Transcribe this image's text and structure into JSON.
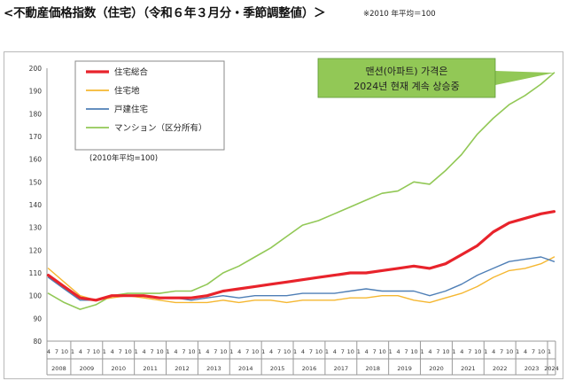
{
  "heading": "<不動産価格指数（住宅）（令和６年３月分・季節調整値）＞",
  "heading_note": "※2010 年平均＝100",
  "colors": {
    "total": "#e8232b",
    "land": "#f5b731",
    "house": "#4f7fb6",
    "condo": "#92c856",
    "callout_bg": "#92c856"
  },
  "chart_data": {
    "type": "line",
    "ylim": [
      80,
      200
    ],
    "yticks": [
      "80",
      "90",
      "100",
      "110",
      "120",
      "130",
      "140",
      "150",
      "160",
      "170",
      "180",
      "190",
      "200"
    ],
    "x_month_ticks": [
      "4",
      "7",
      "10",
      "1"
    ],
    "x_years": [
      "2008",
      "2009",
      "2010",
      "2011",
      "2012",
      "2013",
      "2014",
      "2015",
      "2016",
      "2017",
      "2018",
      "2019",
      "2020",
      "2021",
      "2022",
      "2023",
      "2024"
    ],
    "x_range": [
      "2008-04",
      "2024-03"
    ],
    "grid": false,
    "legend_position": "top-left",
    "legend_note": "(2010年平均=100)",
    "annotation": [
      "맨션(아파트) 가격은",
      "2024년 현재 계속 상승중"
    ],
    "series": [
      {
        "name": "住宅総合",
        "key": "total",
        "points": [
          [
            "2008-04",
            109
          ],
          [
            "2008-10",
            104
          ],
          [
            "2009-04",
            99
          ],
          [
            "2009-10",
            98
          ],
          [
            "2010-04",
            100
          ],
          [
            "2010-10",
            100
          ],
          [
            "2011-04",
            100
          ],
          [
            "2011-10",
            99
          ],
          [
            "2012-04",
            99
          ],
          [
            "2012-10",
            99
          ],
          [
            "2013-04",
            100
          ],
          [
            "2013-10",
            102
          ],
          [
            "2014-04",
            103
          ],
          [
            "2014-10",
            104
          ],
          [
            "2015-04",
            105
          ],
          [
            "2015-10",
            106
          ],
          [
            "2016-04",
            107
          ],
          [
            "2016-10",
            108
          ],
          [
            "2017-04",
            109
          ],
          [
            "2017-10",
            110
          ],
          [
            "2018-04",
            110
          ],
          [
            "2018-10",
            111
          ],
          [
            "2019-04",
            112
          ],
          [
            "2019-10",
            113
          ],
          [
            "2020-04",
            112
          ],
          [
            "2020-10",
            114
          ],
          [
            "2021-04",
            118
          ],
          [
            "2021-10",
            122
          ],
          [
            "2022-04",
            128
          ],
          [
            "2022-10",
            132
          ],
          [
            "2023-04",
            134
          ],
          [
            "2023-10",
            136
          ],
          [
            "2024-03",
            137
          ]
        ]
      },
      {
        "name": "住宅地",
        "key": "land",
        "points": [
          [
            "2008-04",
            112
          ],
          [
            "2008-10",
            106
          ],
          [
            "2009-04",
            100
          ],
          [
            "2009-10",
            98
          ],
          [
            "2010-04",
            99
          ],
          [
            "2010-10",
            100
          ],
          [
            "2011-04",
            99
          ],
          [
            "2011-10",
            98
          ],
          [
            "2012-04",
            97
          ],
          [
            "2012-10",
            97
          ],
          [
            "2013-04",
            97
          ],
          [
            "2013-10",
            98
          ],
          [
            "2014-04",
            97
          ],
          [
            "2014-10",
            98
          ],
          [
            "2015-04",
            98
          ],
          [
            "2015-10",
            97
          ],
          [
            "2016-04",
            98
          ],
          [
            "2016-10",
            98
          ],
          [
            "2017-04",
            98
          ],
          [
            "2017-10",
            99
          ],
          [
            "2018-04",
            99
          ],
          [
            "2018-10",
            100
          ],
          [
            "2019-04",
            100
          ],
          [
            "2019-10",
            98
          ],
          [
            "2020-04",
            97
          ],
          [
            "2020-10",
            99
          ],
          [
            "2021-04",
            101
          ],
          [
            "2021-10",
            104
          ],
          [
            "2022-04",
            108
          ],
          [
            "2022-10",
            111
          ],
          [
            "2023-04",
            112
          ],
          [
            "2023-10",
            114
          ],
          [
            "2024-03",
            117
          ]
        ]
      },
      {
        "name": "戸建住宅",
        "key": "house",
        "points": [
          [
            "2008-04",
            108
          ],
          [
            "2008-10",
            103
          ],
          [
            "2009-04",
            98
          ],
          [
            "2009-10",
            98
          ],
          [
            "2010-04",
            100
          ],
          [
            "2010-10",
            100
          ],
          [
            "2011-04",
            100
          ],
          [
            "2011-10",
            99
          ],
          [
            "2012-04",
            99
          ],
          [
            "2012-10",
            98
          ],
          [
            "2013-04",
            99
          ],
          [
            "2013-10",
            100
          ],
          [
            "2014-04",
            99
          ],
          [
            "2014-10",
            100
          ],
          [
            "2015-04",
            100
          ],
          [
            "2015-10",
            100
          ],
          [
            "2016-04",
            101
          ],
          [
            "2016-10",
            101
          ],
          [
            "2017-04",
            101
          ],
          [
            "2017-10",
            102
          ],
          [
            "2018-04",
            103
          ],
          [
            "2018-10",
            102
          ],
          [
            "2019-04",
            102
          ],
          [
            "2019-10",
            102
          ],
          [
            "2020-04",
            100
          ],
          [
            "2020-10",
            102
          ],
          [
            "2021-04",
            105
          ],
          [
            "2021-10",
            109
          ],
          [
            "2022-04",
            112
          ],
          [
            "2022-10",
            115
          ],
          [
            "2023-04",
            116
          ],
          [
            "2023-10",
            117
          ],
          [
            "2024-03",
            115
          ]
        ]
      },
      {
        "name": "マンション（区分所有）",
        "key": "condo",
        "points": [
          [
            "2008-04",
            101
          ],
          [
            "2008-10",
            97
          ],
          [
            "2009-04",
            94
          ],
          [
            "2009-10",
            96
          ],
          [
            "2010-04",
            100
          ],
          [
            "2010-10",
            101
          ],
          [
            "2011-04",
            101
          ],
          [
            "2011-10",
            101
          ],
          [
            "2012-04",
            102
          ],
          [
            "2012-10",
            102
          ],
          [
            "2013-04",
            105
          ],
          [
            "2013-10",
            110
          ],
          [
            "2014-04",
            113
          ],
          [
            "2014-10",
            117
          ],
          [
            "2015-04",
            121
          ],
          [
            "2015-10",
            126
          ],
          [
            "2016-04",
            131
          ],
          [
            "2016-10",
            133
          ],
          [
            "2017-04",
            136
          ],
          [
            "2017-10",
            139
          ],
          [
            "2018-04",
            142
          ],
          [
            "2018-10",
            145
          ],
          [
            "2019-04",
            146
          ],
          [
            "2019-10",
            150
          ],
          [
            "2020-04",
            149
          ],
          [
            "2020-10",
            155
          ],
          [
            "2021-04",
            162
          ],
          [
            "2021-10",
            171
          ],
          [
            "2022-04",
            178
          ],
          [
            "2022-10",
            184
          ],
          [
            "2023-04",
            188
          ],
          [
            "2023-10",
            193
          ],
          [
            "2024-03",
            198
          ]
        ]
      }
    ]
  }
}
